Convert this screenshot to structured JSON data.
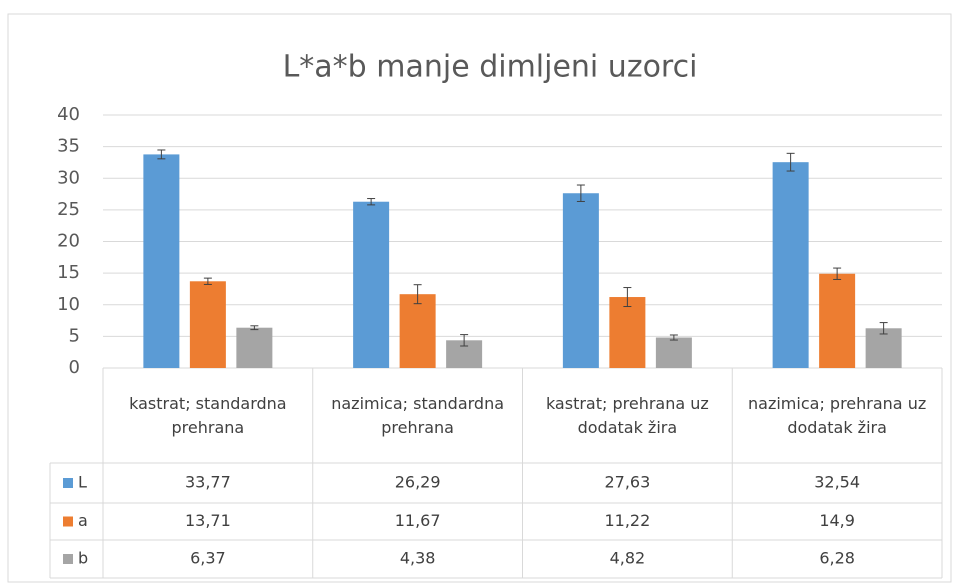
{
  "chart_data": {
    "type": "bar",
    "title": "L*a*b manje dimljeni uzorci",
    "categories": [
      "kastrat; standardna prehrana",
      "nazimica; standardna prehrana",
      "kastrat; prehrana uz dodatak žira",
      "nazimica; prehrana uz dodatak žira"
    ],
    "series": [
      {
        "name": "L",
        "color": "#5b9bd5",
        "values": [
          33.77,
          26.29,
          27.63,
          32.54
        ],
        "value_labels": [
          "33,77",
          "26,29",
          "27,63",
          "32,54"
        ],
        "errors": [
          0.7,
          0.5,
          1.3,
          1.4
        ]
      },
      {
        "name": "a",
        "color": "#ed7d31",
        "values": [
          13.71,
          11.67,
          11.22,
          14.9
        ],
        "value_labels": [
          "13,71",
          "11,67",
          "11,22",
          "14,9"
        ],
        "errors": [
          0.5,
          1.5,
          1.5,
          0.9
        ]
      },
      {
        "name": "b",
        "color": "#a5a5a5",
        "values": [
          6.37,
          4.38,
          4.82,
          6.28
        ],
        "value_labels": [
          "6,37",
          "4,38",
          "4,82",
          "6,28"
        ],
        "errors": [
          0.3,
          0.9,
          0.4,
          0.9
        ]
      }
    ],
    "ylim": [
      0,
      40
    ],
    "yticks": [
      0,
      5,
      10,
      15,
      20,
      25,
      30,
      35,
      40
    ],
    "grid": true
  }
}
